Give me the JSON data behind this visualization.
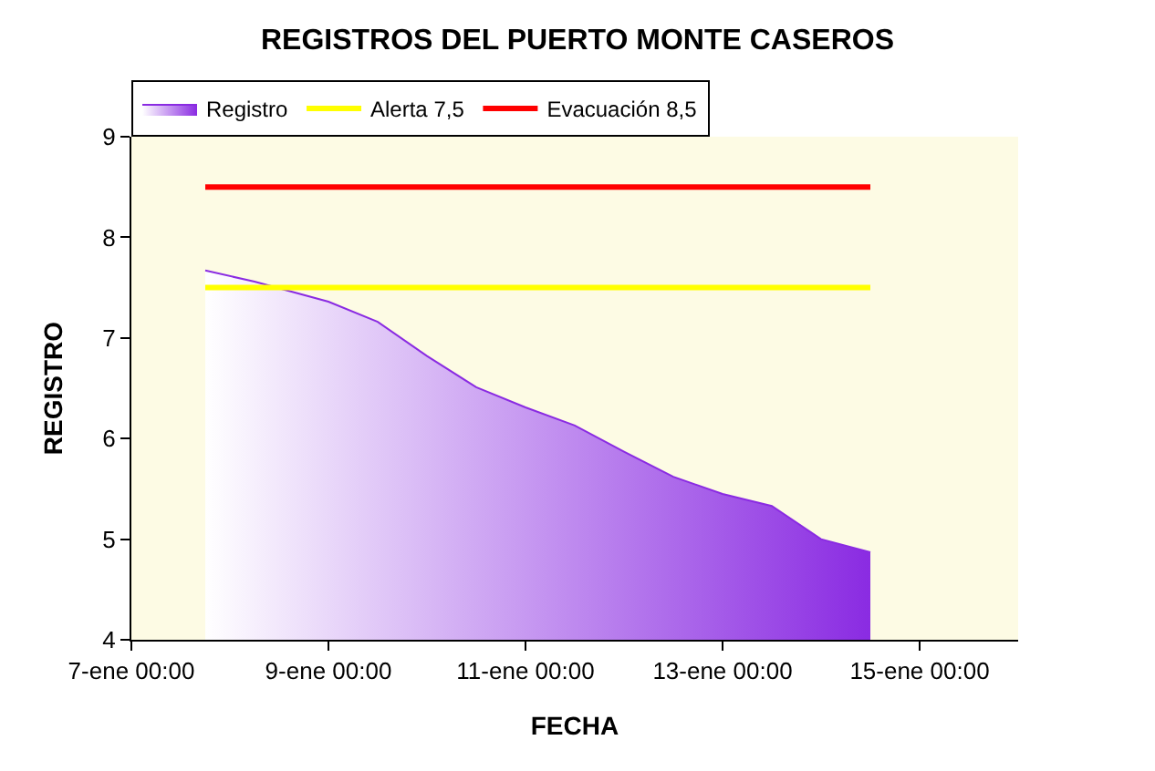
{
  "chart_data": {
    "type": "area",
    "title": "REGISTROS DEL PUERTO MONTE CASEROS",
    "xlabel": "FECHA",
    "ylabel": "REGISTRO",
    "x": [
      "--01-07T18:00",
      "--01-08T06:00",
      "--01-09T00:00",
      "--01-09T12:00",
      "--01-10T00:00",
      "--01-10T12:00",
      "--01-11T00:00",
      "--01-11T12:00",
      "--01-12T00:00",
      "--01-12T12:00",
      "--01-13T00:00",
      "--01-13T12:00",
      "--01-14T00:00",
      "--01-14T12:00"
    ],
    "series": [
      {
        "name": "Registro",
        "color": "#8a2be2",
        "values": [
          7.67,
          7.56,
          7.36,
          7.16,
          6.82,
          6.51,
          6.31,
          6.13,
          5.87,
          5.62,
          5.45,
          5.33,
          5.0,
          4.87
        ]
      },
      {
        "name": "Alerta 7,5",
        "type": "line",
        "color": "#ffff00",
        "x": [
          "--01-07T18:00",
          "--01-14T12:00"
        ],
        "values": [
          7.5,
          7.5
        ]
      },
      {
        "name": "Evacuación 8,5",
        "type": "line",
        "color": "#ff0000",
        "x": [
          "--01-07T18:00",
          "--01-14T12:00"
        ],
        "values": [
          8.5,
          8.5
        ]
      }
    ],
    "xlim": [
      "--01-07",
      "--01-16"
    ],
    "xticks": [
      {
        "value": "--01-07",
        "label": "7-ene 00:00"
      },
      {
        "value": "--01-09",
        "label": "9-ene 00:00"
      },
      {
        "value": "--01-11",
        "label": "11-ene 00:00"
      },
      {
        "value": "--01-13",
        "label": "13-ene 00:00"
      },
      {
        "value": "--01-15",
        "label": "15-ene 00:00"
      }
    ],
    "ylim": [
      4,
      9
    ],
    "yticks": [
      4,
      5,
      6,
      7,
      8,
      9
    ],
    "grid": false,
    "legend": "top"
  }
}
